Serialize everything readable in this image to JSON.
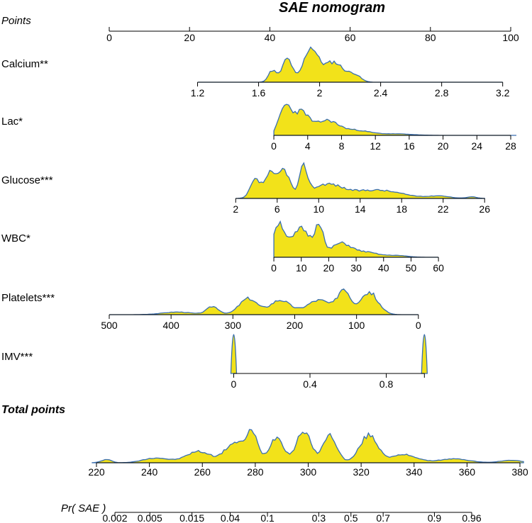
{
  "chart_data": {
    "type": "nomogram",
    "title": "SAE nomogram",
    "points_axis": {
      "label": "Points",
      "ticks": [
        "0",
        "20",
        "40",
        "60",
        "80",
        "100"
      ],
      "values": [
        0,
        20,
        40,
        60,
        80,
        100
      ]
    },
    "variables": [
      {
        "label": "Calcium**",
        "ticks": [
          "1.2",
          "1.6",
          "2",
          "2.4",
          "2.8",
          "3.2"
        ],
        "values": [
          1.2,
          1.6,
          2.0,
          2.4,
          2.8,
          3.2
        ],
        "points_at_first_tick": 22,
        "points_at_last_tick": 98
      },
      {
        "label": "Lac*",
        "ticks": [
          "0",
          "4",
          "8",
          "12",
          "16",
          "20",
          "24",
          "28"
        ],
        "values": [
          0,
          4,
          8,
          12,
          16,
          20,
          24,
          28
        ],
        "points_at_first_tick": 41,
        "points_at_last_tick": 100
      },
      {
        "label": "Glucose***",
        "ticks": [
          "2",
          "6",
          "10",
          "14",
          "18",
          "22",
          "26"
        ],
        "values": [
          2,
          6,
          10,
          14,
          18,
          22,
          26
        ],
        "points_at_first_tick": 31.5,
        "points_at_last_tick": 93.5
      },
      {
        "label": "WBC*",
        "ticks": [
          "0",
          "10",
          "20",
          "30",
          "40",
          "50",
          "60"
        ],
        "values": [
          0,
          10,
          20,
          30,
          40,
          50,
          60
        ],
        "points_at_first_tick": 41,
        "points_at_last_tick": 82
      },
      {
        "label": "Platelets***",
        "ticks": [
          "500",
          "400",
          "300",
          "200",
          "100",
          "0"
        ],
        "values": [
          500,
          400,
          300,
          200,
          100,
          0
        ],
        "points_at_first_tick": 0,
        "points_at_last_tick": 77
      },
      {
        "label": "IMV***",
        "ticks": [
          "0",
          "0.4",
          "0.8"
        ],
        "values": [
          0,
          0.4,
          0.8
        ],
        "points_at_first_tick": 31,
        "points_at_last_tick": 69
      }
    ],
    "total_points": {
      "label": "Total points",
      "ticks": [
        "220",
        "240",
        "260",
        "280",
        "300",
        "320",
        "340",
        "360",
        "380"
      ],
      "values": [
        220,
        240,
        260,
        280,
        300,
        320,
        340,
        360,
        380
      ]
    },
    "probability": {
      "label": "Pr( SAE )",
      "ticks": [
        "0.002",
        "0.005",
        "0.015",
        "0.04",
        "0.1",
        "0.3",
        "0.5",
        "0.7",
        "0.9",
        "0.96"
      ],
      "values": [
        0.002,
        0.005,
        0.015,
        0.04,
        0.1,
        0.3,
        0.5,
        0.7,
        0.9,
        0.96
      ]
    },
    "density_fill": "#f2e21a",
    "density_stroke": "#3a6fb0"
  }
}
